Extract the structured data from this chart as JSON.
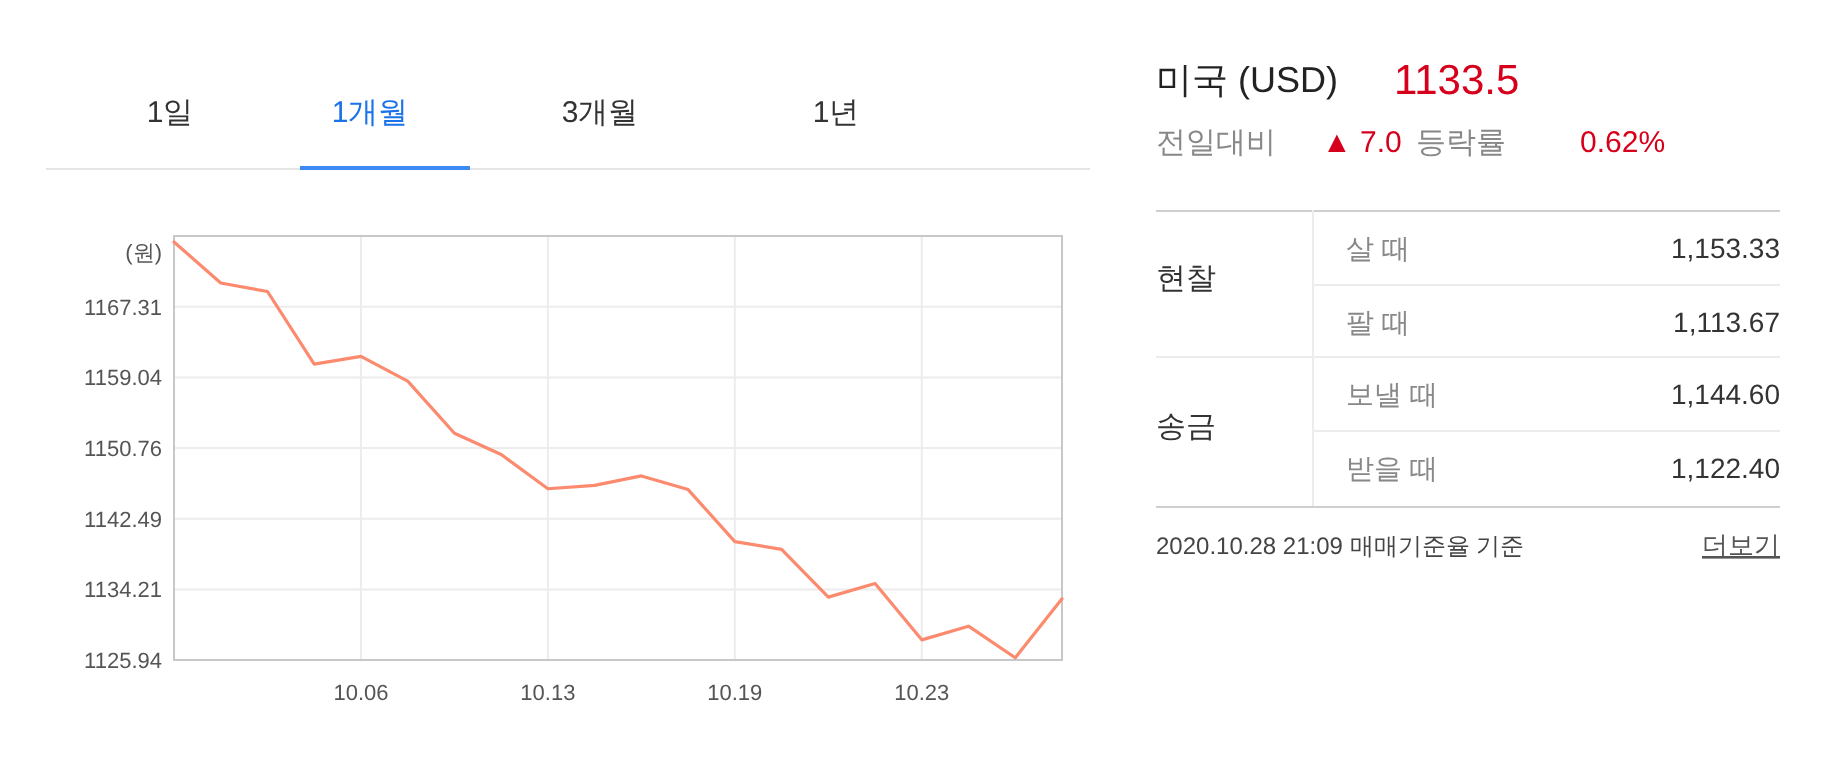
{
  "chart_data": [
    {
      "type": "line",
      "ylabel": "(원)",
      "annotations": [
        "1일",
        "1개월",
        "3개월",
        "1년"
      ],
      "categories": [
        null,
        null,
        null,
        null,
        "10.06",
        null,
        null,
        null,
        "10.13",
        null,
        null,
        null,
        "10.19",
        null,
        null,
        null,
        "10.23",
        null,
        null,
        null
      ],
      "series": [
        {
          "color": "#fb8a6e",
          "values": [
            1174.9,
            1170.1,
            1169.1,
            1160.6,
            1161.5,
            1158.6,
            1152.5,
            1150.0,
            1146.0,
            1146.4,
            1147.5,
            1145.9,
            1139.8,
            1138.9,
            1133.3,
            1134.9,
            1128.3,
            1129.9,
            1126.2,
            1133.1
          ]
        }
      ],
      "ylim": [
        1125.94,
        1175.6
      ],
      "yticks": [
        1125.94,
        1134.21,
        1142.49,
        1150.76,
        1159.04,
        1167.31
      ],
      "grid": true,
      "marker": "none",
      "line_style": "solid"
    },
    {
      "type": "other",
      "title": "미국 (USD)",
      "annotations": [
        "1133.5",
        "전일대비",
        "▲ 7.0",
        "등락률",
        "0.62%",
        "현찰",
        "살 때",
        "1,153.33",
        "팔 때",
        "1,113.67",
        "송금",
        "보낼 때",
        "1,144.60",
        "받을 때",
        "1,122.40",
        "2020.10.28 21:09 매매기준율 기준",
        "더보기"
      ]
    }
  ]
}
